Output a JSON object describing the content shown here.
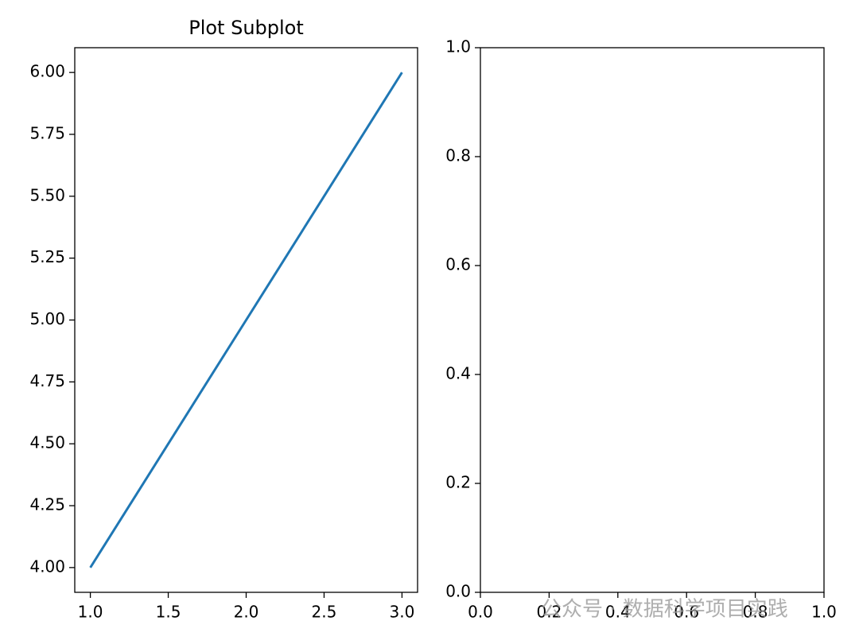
{
  "chart_data": [
    {
      "type": "line",
      "title": "Plot Subplot",
      "x": [
        1,
        2,
        3
      ],
      "values": [
        4,
        5,
        6
      ],
      "color": "#1f77b4",
      "xlim": [
        0.9,
        3.1
      ],
      "ylim": [
        3.9,
        6.1
      ],
      "xticks": [
        {
          "value": 1,
          "label": "1.0"
        },
        {
          "value": 1.5,
          "label": "1.5"
        },
        {
          "value": 2,
          "label": "2.0"
        },
        {
          "value": 2.5,
          "label": "2.5"
        },
        {
          "value": 3,
          "label": "3.0"
        }
      ],
      "yticks": [
        {
          "value": 4,
          "label": "4.00"
        },
        {
          "value": 4.25,
          "label": "4.25"
        },
        {
          "value": 4.5,
          "label": "4.50"
        },
        {
          "value": 4.75,
          "label": "4.75"
        },
        {
          "value": 5,
          "label": "5.00"
        },
        {
          "value": 5.25,
          "label": "5.25"
        },
        {
          "value": 5.5,
          "label": "5.50"
        },
        {
          "value": 5.75,
          "label": "5.75"
        },
        {
          "value": 6,
          "label": "6.00"
        }
      ]
    },
    {
      "type": "empty",
      "xlim": [
        0,
        1
      ],
      "ylim": [
        0,
        1
      ],
      "xticks": [
        {
          "value": 0,
          "label": "0.0"
        },
        {
          "value": 0.2,
          "label": "0.2"
        },
        {
          "value": 0.4,
          "label": "0.4"
        },
        {
          "value": 0.6,
          "label": "0.6"
        },
        {
          "value": 0.8,
          "label": "0.8"
        },
        {
          "value": 1,
          "label": "1.0"
        }
      ],
      "yticks": [
        {
          "value": 0,
          "label": "0.0"
        },
        {
          "value": 0.2,
          "label": "0.2"
        },
        {
          "value": 0.4,
          "label": "0.4"
        },
        {
          "value": 0.6,
          "label": "0.6"
        },
        {
          "value": 0.8,
          "label": "0.8"
        },
        {
          "value": 1,
          "label": "1.0"
        }
      ]
    }
  ],
  "watermark": "公众号 · 数据科学项目实践"
}
